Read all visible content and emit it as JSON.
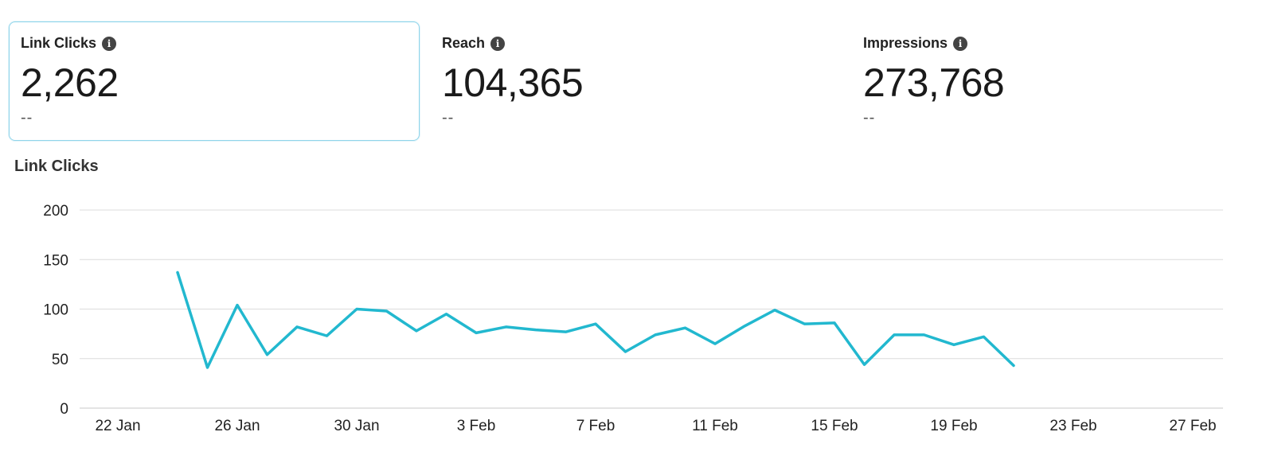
{
  "metrics": [
    {
      "label": "Link Clicks",
      "value": "2,262",
      "delta": "--"
    },
    {
      "label": "Reach",
      "value": "104,365",
      "delta": "--"
    },
    {
      "label": "Impressions",
      "value": "273,768",
      "delta": "--"
    }
  ],
  "chart_title": "Link Clicks",
  "colors": {
    "line": "#22b8cf",
    "grid": "#dcdcdc",
    "selected_border": "#8fd4ea"
  },
  "chart_data": {
    "type": "line",
    "title": "Link Clicks",
    "xlabel": "",
    "ylabel": "",
    "ylim": [
      0,
      200
    ],
    "yticks": [
      0,
      50,
      100,
      150,
      200
    ],
    "xlim": [
      "22 Jan",
      "28 Feb"
    ],
    "xtick_labels": [
      "22 Jan",
      "26 Jan",
      "30 Jan",
      "3 Feb",
      "7 Feb",
      "11 Feb",
      "15 Feb",
      "19 Feb",
      "23 Feb",
      "27 Feb"
    ],
    "grid": true,
    "series": [
      {
        "x": [
          "24 Jan",
          "25 Jan",
          "26 Jan",
          "27 Jan",
          "28 Jan",
          "29 Jan",
          "30 Jan",
          "31 Jan",
          "1 Feb",
          "2 Feb",
          "3 Feb",
          "4 Feb",
          "5 Feb",
          "6 Feb",
          "7 Feb",
          "8 Feb",
          "9 Feb",
          "10 Feb",
          "11 Feb",
          "12 Feb",
          "13 Feb",
          "14 Feb",
          "15 Feb",
          "16 Feb",
          "17 Feb",
          "18 Feb",
          "19 Feb",
          "20 Feb",
          "21 Feb"
        ],
        "values": [
          137,
          41,
          104,
          54,
          82,
          73,
          100,
          98,
          78,
          95,
          76,
          82,
          79,
          77,
          85,
          57,
          74,
          81,
          65,
          83,
          99,
          85,
          86,
          44,
          74,
          74,
          64,
          72,
          43
        ]
      }
    ]
  }
}
